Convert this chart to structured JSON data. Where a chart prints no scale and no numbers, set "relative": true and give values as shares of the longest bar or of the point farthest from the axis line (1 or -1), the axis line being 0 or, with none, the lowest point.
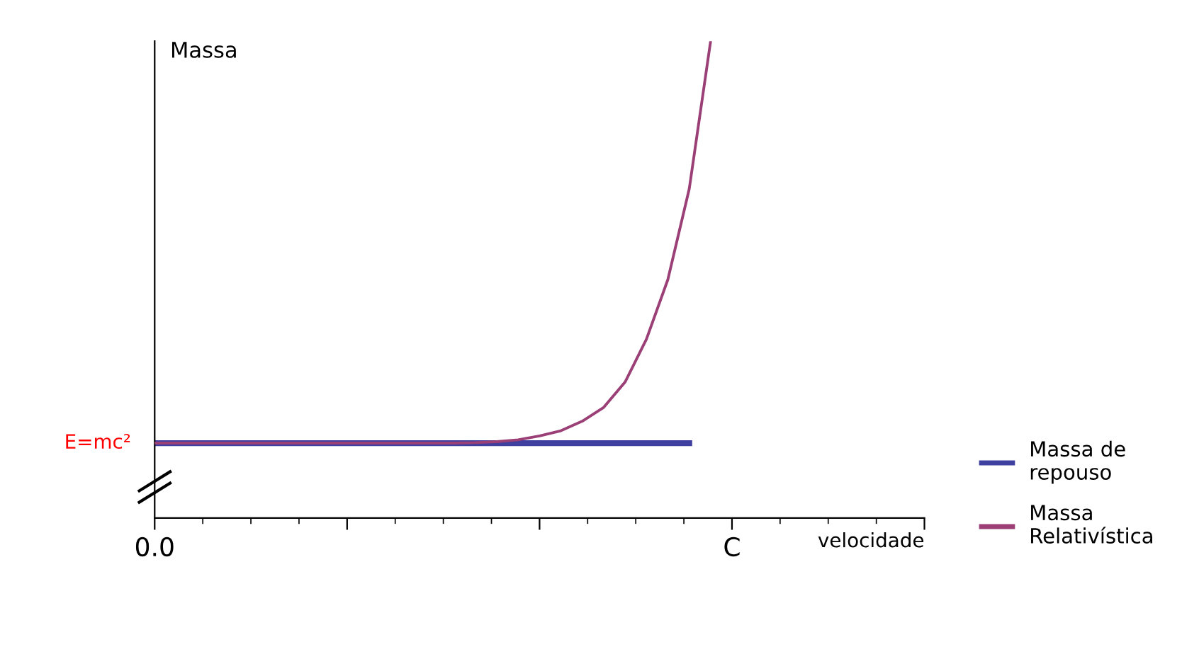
{
  "chart_data": {
    "type": "line",
    "relative": true,
    "xlabel": "velocidade",
    "ylabel": "Massa",
    "categories": [
      "0.0",
      null,
      null,
      null,
      null,
      null,
      null,
      null,
      null,
      null,
      null,
      null,
      null,
      null,
      null,
      null,
      null,
      null,
      null,
      null,
      null,
      null,
      null,
      null,
      null,
      null,
      null,
      "C",
      null,
      null,
      null,
      null,
      null,
      null,
      null,
      null,
      null
    ],
    "series": [
      {
        "name": "Massa de\nrepouso",
        "color": "#3f3f9f",
        "values": [
          0.157,
          0.157,
          0.157,
          0.157,
          0.157,
          0.157,
          0.157,
          0.157,
          0.157,
          0.157,
          0.157,
          0.157,
          0.157,
          0.157,
          0.157,
          0.157,
          0.157,
          0.157,
          0.157,
          0.157,
          0.157,
          0.157,
          0.157,
          0.157,
          0.157,
          0.157,
          null,
          null,
          null,
          null,
          null,
          null,
          null,
          null,
          null,
          null,
          null
        ]
      },
      {
        "name": "Massa\nRelativística",
        "color": "#9b3f77",
        "values": [
          0.157,
          0.157,
          0.157,
          0.157,
          0.157,
          0.157,
          0.157,
          0.157,
          0.157,
          0.157,
          0.157,
          0.157,
          0.157,
          0.157,
          0.157,
          0.158,
          0.16,
          0.164,
          0.172,
          0.183,
          0.203,
          0.232,
          0.285,
          0.375,
          0.5,
          0.69,
          1,
          null,
          null,
          null,
          null,
          null,
          null,
          null,
          null,
          null,
          null
        ]
      }
    ],
    "annotations": [
      {
        "text": "E=mc²",
        "x": "0.0",
        "y": 0.157
      }
    ],
    "legend": "right",
    "grid": false
  }
}
